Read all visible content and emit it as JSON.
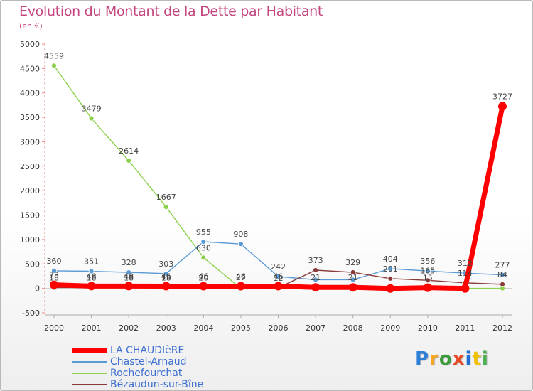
{
  "header": {
    "title": "Evolution du Montant de la Dette par Habitant",
    "unit": "(en €)"
  },
  "logo": {
    "text": "Proxiti",
    "colors": [
      "#2b7fd6",
      "#f5a623",
      "#3a9a3a",
      "#e84a27",
      "#1f6fd0",
      "#f2c200",
      "#4caf50"
    ]
  },
  "chart_data": {
    "type": "line",
    "title": "Evolution du Montant de la Dette par Habitant",
    "ylabel": "(en €)",
    "xlabel": "",
    "x": [
      "2000",
      "2001",
      "2002",
      "2003",
      "2004",
      "2005",
      "2006",
      "2007",
      "2008",
      "2009",
      "2010",
      "2011",
      "2012"
    ],
    "ylim": [
      -500,
      5000
    ],
    "yticks": [
      5000,
      4500,
      4000,
      3500,
      3000,
      2500,
      2000,
      1500,
      1000,
      500,
      0,
      -500
    ],
    "grid": false,
    "legend_position": "bottom-left",
    "series": [
      {
        "name": "LA CHAUDIèRE",
        "color": "#ff0000",
        "stroke": 7,
        "marker": 6,
        "values": [
          73,
          48,
          48,
          46,
          46,
          46,
          46,
          21,
          21,
          -1,
          15,
          -1,
          3727
        ],
        "labels": [
          "73",
          "48",
          "48",
          "46",
          "46",
          "46",
          "46",
          "21",
          "21",
          "",
          "15",
          "",
          "3727"
        ]
      },
      {
        "name": "Chastel-Arnaud",
        "color": "#5b9bd5",
        "stroke": 1.4,
        "marker": 3.5,
        "values": [
          360,
          351,
          328,
          303,
          955,
          908,
          242,
          178,
          178,
          404,
          356,
          312,
          277
        ],
        "labels": [
          "360",
          "351",
          "328",
          "303",
          "955",
          "908",
          "242",
          "",
          "",
          "404",
          "356",
          "312",
          "277"
        ]
      },
      {
        "name": "Rochefourchat",
        "color": "#8bd14b",
        "stroke": 1.4,
        "marker": 3.5,
        "values": [
          4559,
          3479,
          2614,
          1667,
          630,
          0,
          0,
          0,
          0,
          0,
          0,
          0,
          0
        ],
        "labels": [
          "4559",
          "3479",
          "2614",
          "1667",
          "630",
          "",
          "",
          "",
          "",
          "",
          "",
          "",
          ""
        ]
      },
      {
        "name": "Bézaudun-sur-Bîne",
        "color": "#8b3a3a",
        "stroke": 1.4,
        "marker": 3.5,
        "values": [
          18,
          18,
          18,
          18,
          20,
          27,
          12,
          373,
          329,
          201,
          165,
          114,
          84
        ],
        "labels": [
          "18",
          "18",
          "18",
          "18",
          "20",
          "27",
          "12",
          "373",
          "329",
          "201",
          "165",
          "114",
          "84"
        ]
      }
    ]
  }
}
